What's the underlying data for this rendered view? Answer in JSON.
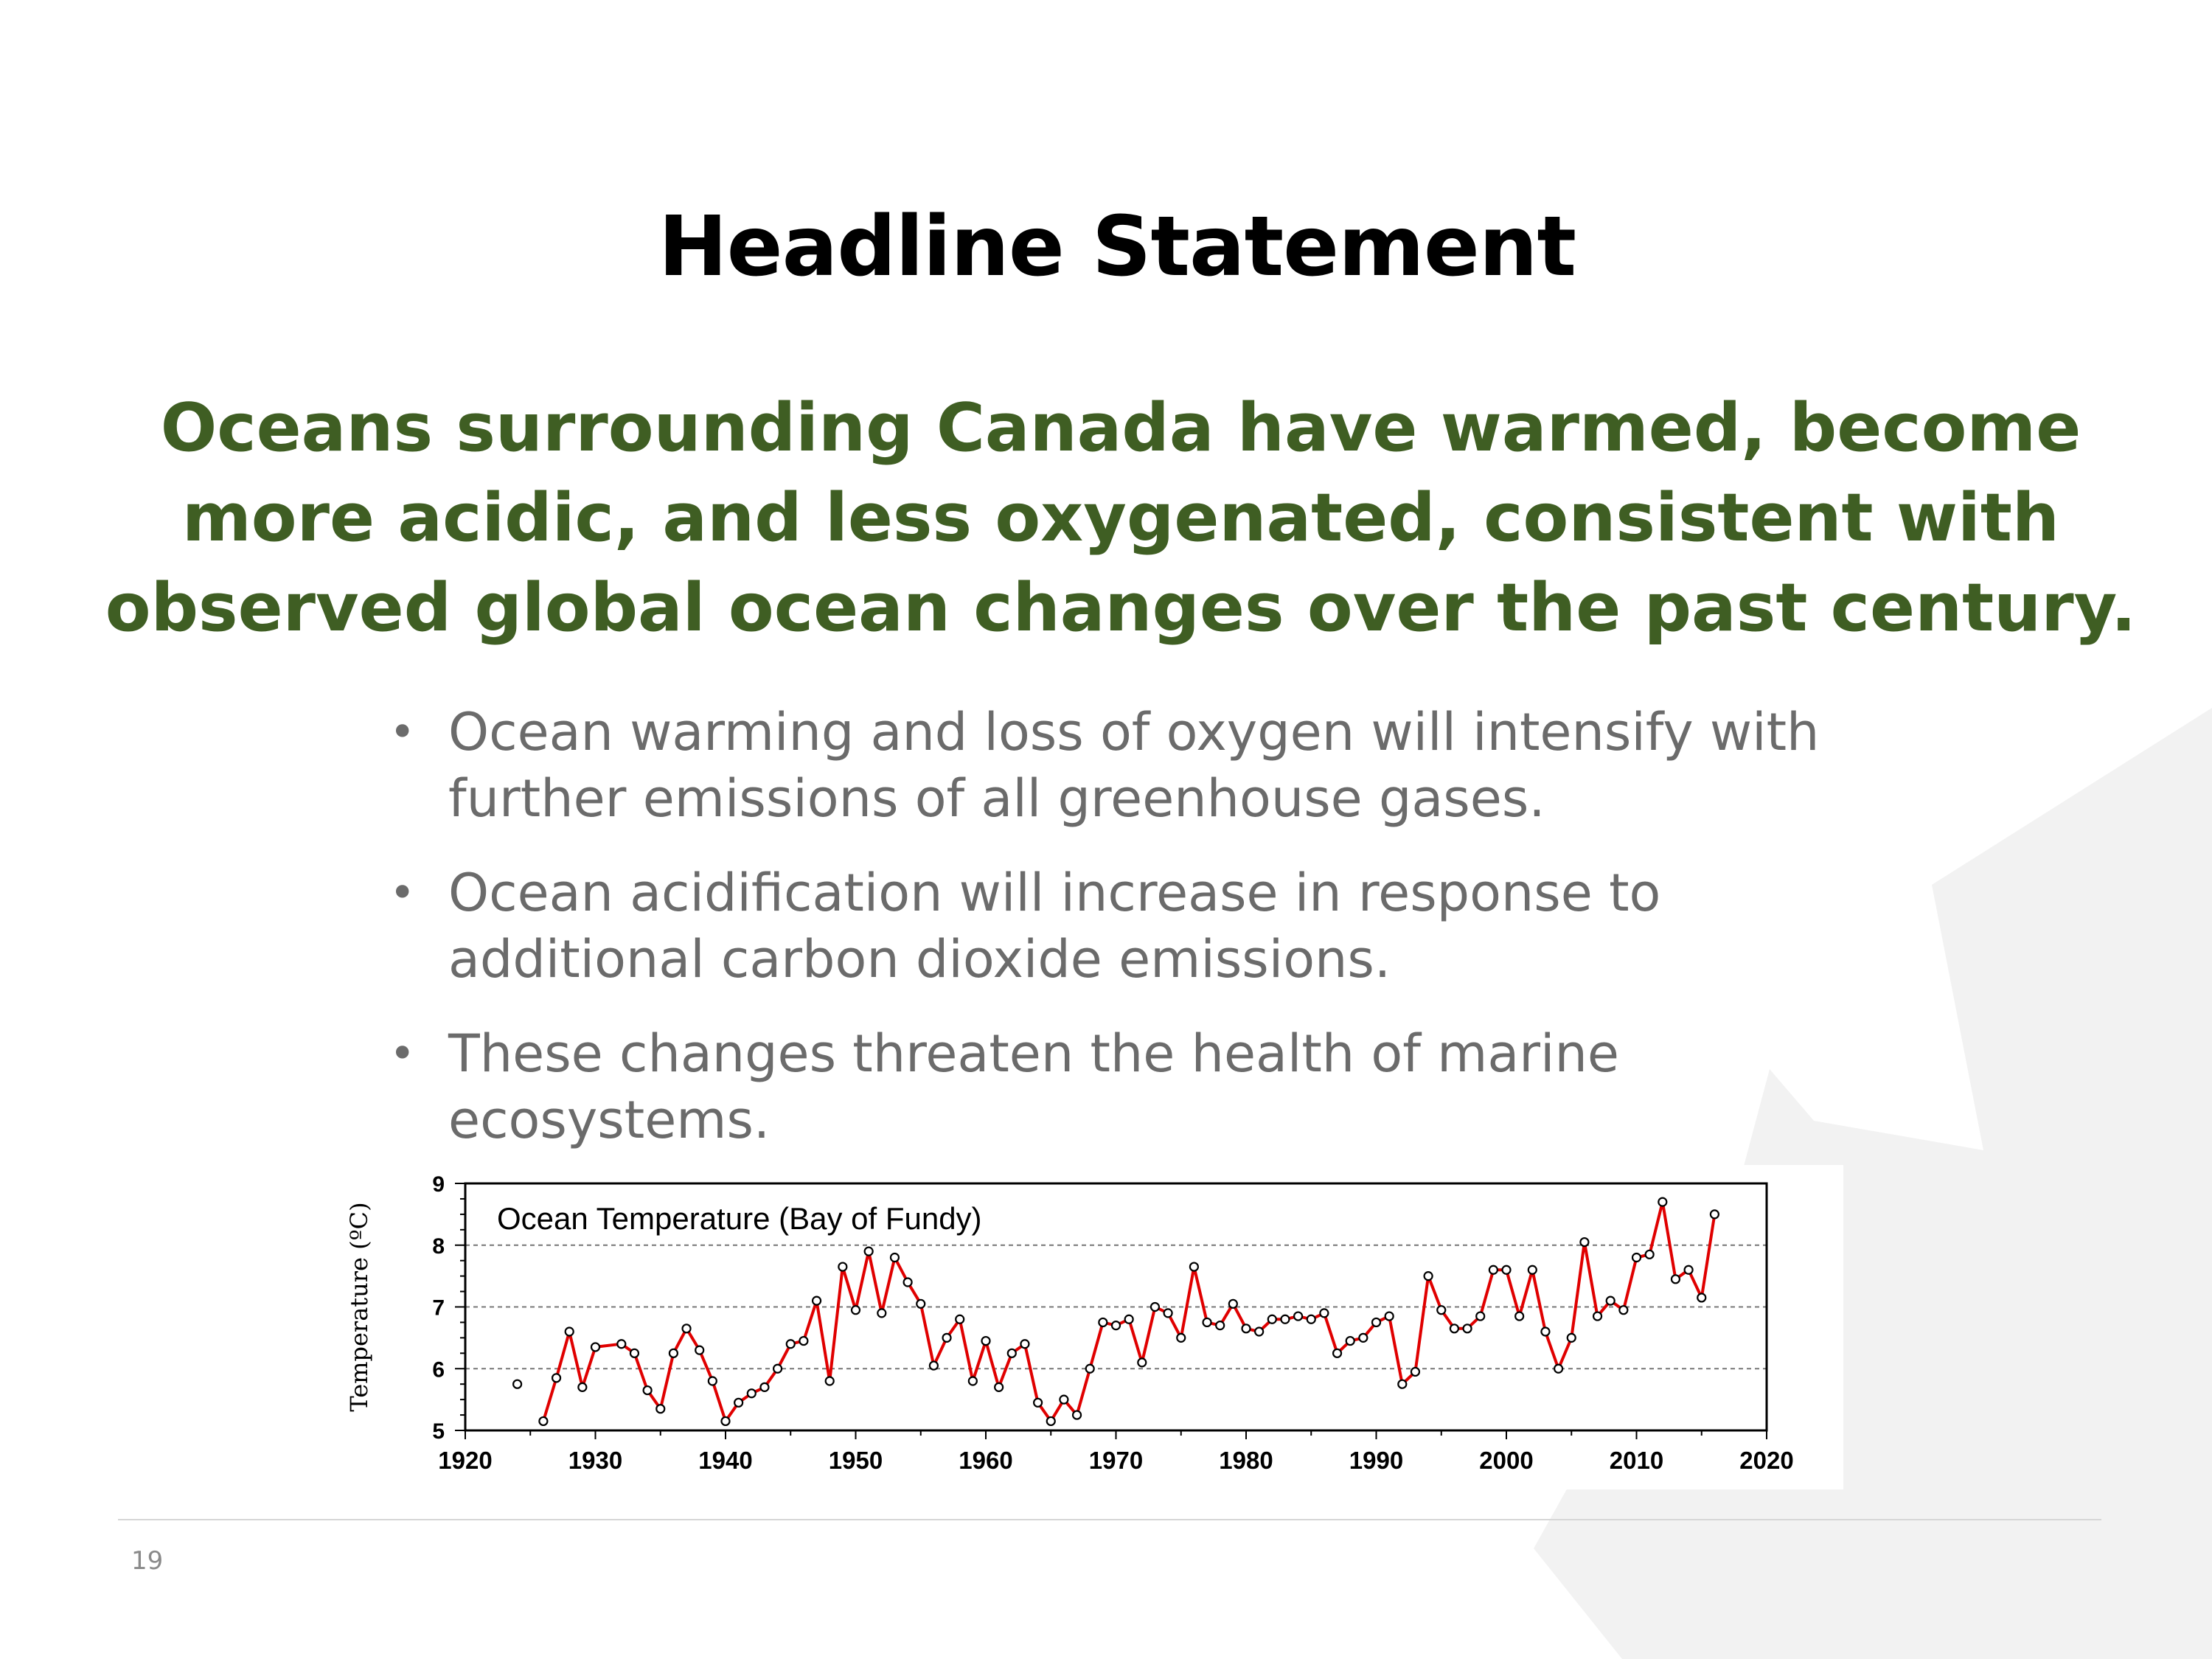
{
  "slide": {
    "title": "Headline Statement",
    "subtitle": "Oceans surrounding Canada have warmed, become more acidic, and less oxygenated, consistent with observed global ocean changes over the past century.",
    "bullets": [
      "Ocean warming and loss of oxygen will intensify with further emissions of all greenhouse gases.",
      "Ocean acidification will increase in response to additional carbon dioxide emissions.",
      "These changes threaten the health of marine ecosystems."
    ],
    "bullet_symbol": "•",
    "page_number": "19"
  },
  "colors": {
    "title": "#000000",
    "subtitle": "#3f5e23",
    "bullets": "#6b6b6b",
    "series_line": "#e00000",
    "background_logo": "#f2f2f2"
  },
  "chart_data": {
    "type": "line",
    "title": "Ocean Temperature (Bay of Fundy)",
    "xlabel": "",
    "ylabel": "Temperature (ºC)",
    "xlim": [
      1920,
      2020
    ],
    "ylim": [
      5,
      9
    ],
    "xticks": [
      1920,
      1930,
      1940,
      1950,
      1960,
      1970,
      1980,
      1990,
      2000,
      2010,
      2020
    ],
    "yticks": [
      5,
      6,
      7,
      8,
      9
    ],
    "grid": "dashed horizontal at 6, 7, 8",
    "legend": "none",
    "series": [
      {
        "x": [
          1924,
          1926,
          1927,
          1928,
          1929,
          1930,
          1932,
          1933,
          1934,
          1935,
          1936,
          1937,
          1938,
          1939,
          1940,
          1941,
          1942,
          1943,
          1944,
          1945,
          1946,
          1947,
          1948,
          1949,
          1950,
          1951,
          1952,
          1953,
          1954,
          1955,
          1956,
          1957,
          1958,
          1959,
          1960,
          1961,
          1962,
          1963,
          1964,
          1965,
          1966,
          1967,
          1968,
          1969,
          1970,
          1971,
          1972,
          1973,
          1974,
          1975,
          1976,
          1977,
          1978,
          1979,
          1980,
          1981,
          1982,
          1983,
          1984,
          1985,
          1986,
          1987,
          1988,
          1989,
          1990,
          1991,
          1992,
          1993,
          1994,
          1995,
          1996,
          1997,
          1998,
          1999,
          2000,
          2001,
          2002,
          2003,
          2004,
          2005,
          2006,
          2007,
          2008,
          2009,
          2010,
          2011,
          2012,
          2013,
          2014,
          2015,
          2016
        ],
        "values": [
          5.75,
          5.15,
          5.85,
          6.6,
          5.7,
          6.35,
          6.4,
          6.25,
          5.65,
          5.35,
          6.25,
          6.65,
          6.3,
          5.8,
          5.15,
          5.45,
          5.6,
          5.7,
          6.0,
          6.4,
          6.45,
          7.1,
          5.8,
          7.65,
          6.95,
          7.9,
          6.9,
          7.8,
          7.4,
          7.05,
          6.05,
          6.5,
          6.8,
          5.8,
          6.45,
          5.7,
          6.25,
          6.4,
          5.45,
          5.15,
          5.5,
          5.25,
          6.0,
          6.75,
          6.7,
          6.8,
          6.1,
          7.0,
          6.9,
          6.5,
          7.65,
          6.75,
          6.7,
          7.05,
          6.65,
          6.6,
          6.8,
          6.8,
          6.85,
          6.8,
          6.9,
          6.25,
          6.45,
          6.5,
          6.75,
          6.85,
          5.75,
          5.95,
          7.5,
          6.95,
          6.65,
          6.65,
          6.85,
          7.6,
          7.6,
          6.85,
          7.6,
          6.6,
          6.0,
          6.5,
          8.05,
          6.85,
          7.1,
          6.95,
          7.8,
          7.85,
          8.7,
          7.45,
          7.6,
          7.15,
          8.5
        ],
        "gaps_before_x": [
          1926
        ]
      }
    ]
  }
}
